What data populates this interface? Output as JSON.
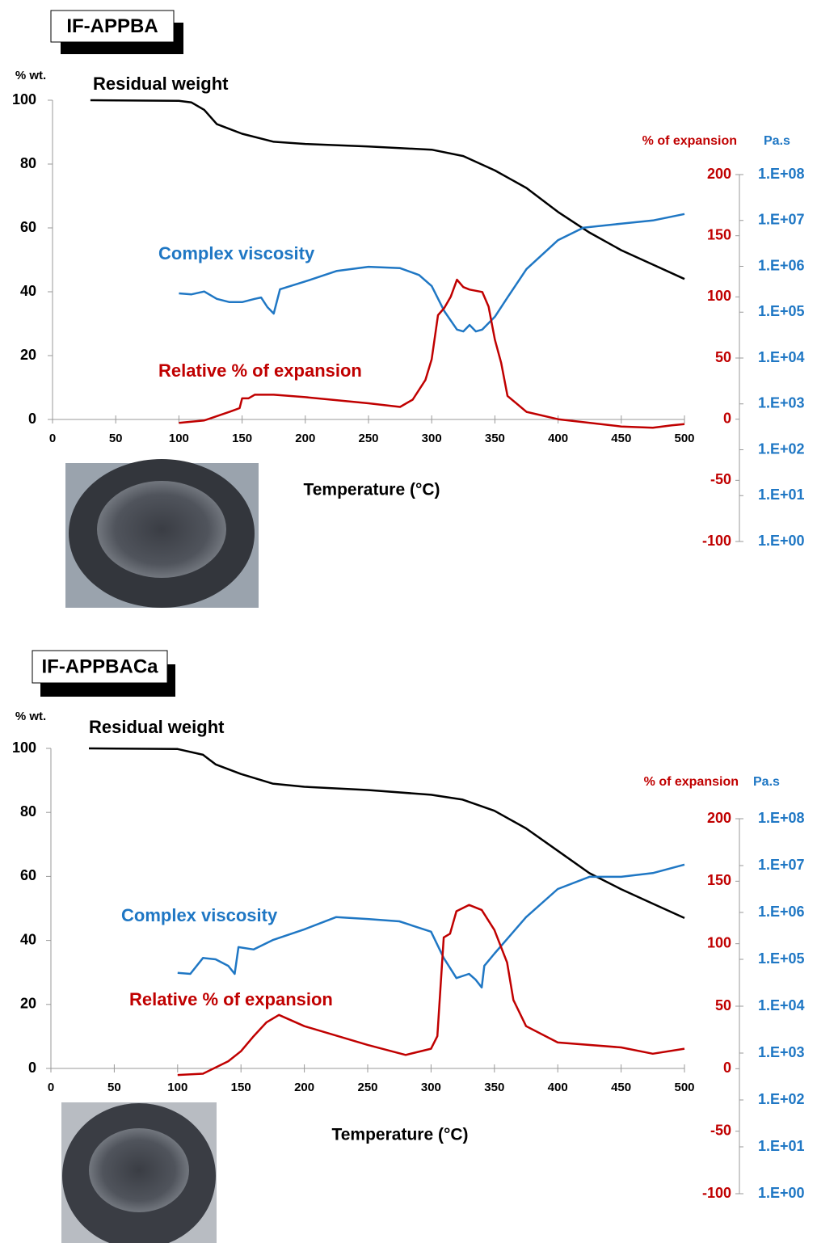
{
  "chart_data": [
    {
      "type": "line",
      "title": "IF-APPBA",
      "x_label": "Temperature (°C)",
      "y_label": "% wt.",
      "y2_label": "% of expansion",
      "y3_label": "Pa.s",
      "xlim": [
        0,
        500
      ],
      "xticks": [
        0,
        50,
        100,
        150,
        200,
        250,
        300,
        350,
        400,
        450,
        500
      ],
      "ylim": [
        0,
        100
      ],
      "yticks": [
        0,
        20,
        40,
        60,
        80,
        100
      ],
      "y2lim": [
        -100,
        200
      ],
      "y2ticks": [
        -100,
        -50,
        0,
        50,
        100,
        150,
        200
      ],
      "y3lim": [
        1,
        100000000
      ],
      "y3log": true,
      "y3ticks": [
        {
          "value": 1,
          "label": "1.E+00"
        },
        {
          "value": 10,
          "label": "1.E+01"
        },
        {
          "value": 100,
          "label": "1.E+02"
        },
        {
          "value": 1000,
          "label": "1.E+03"
        },
        {
          "value": 10000,
          "label": "1.E+04"
        },
        {
          "value": 100000,
          "label": "1.E+05"
        },
        {
          "value": 1000000,
          "label": "1.E+06"
        },
        {
          "value": 10000000,
          "label": "1.E+07"
        },
        {
          "value": 100000000,
          "label": "1.E+08"
        }
      ],
      "series": [
        {
          "name": "Residual weight",
          "color": "#000000",
          "axis": "y",
          "x": [
            30,
            100,
            110,
            120,
            130,
            140,
            150,
            175,
            200,
            250,
            300,
            325,
            350,
            375,
            400,
            425,
            450,
            475,
            500
          ],
          "values": [
            100,
            99.8,
            99.3,
            97,
            92.5,
            91,
            89.5,
            87,
            86.3,
            85.5,
            84.5,
            82.5,
            78,
            72.5,
            65,
            58.5,
            53,
            48.5,
            44
          ]
        },
        {
          "name": "Complex viscosity",
          "color": "#1f77c4",
          "axis": "y3",
          "x": [
            100,
            110,
            120,
            130,
            140,
            150,
            160,
            165,
            170,
            175,
            180,
            200,
            225,
            250,
            275,
            290,
            300,
            310,
            320,
            325,
            330,
            335,
            340,
            350,
            360,
            375,
            400,
            420,
            450,
            475,
            500
          ],
          "values": [
            257000,
            245000,
            282000,
            195000,
            166000,
            166000,
            195000,
            209000,
            129000,
            93000,
            316000,
            468000,
            794000,
            977000,
            912000,
            646000,
            372000,
            105000,
            41700,
            38000,
            52500,
            38000,
            41700,
            79400,
            209000,
            871000,
            3720000,
            6920000,
            8510000,
            10000000,
            13800000
          ]
        },
        {
          "name": "Relative % of expansion",
          "color": "#c00000",
          "axis": "y2",
          "x": [
            100,
            120,
            140,
            148,
            150,
            155,
            160,
            175,
            200,
            250,
            275,
            285,
            295,
            300,
            305,
            310,
            315,
            320,
            325,
            330,
            340,
            345,
            350,
            355,
            360,
            375,
            400,
            450,
            475,
            490,
            500
          ],
          "values": [
            -3,
            -1,
            6,
            9,
            17,
            17,
            20,
            20,
            18,
            13,
            10,
            16,
            32,
            49,
            85,
            91,
            100,
            114,
            108,
            106,
            104,
            92,
            65,
            46,
            19,
            6,
            0,
            -6,
            -7,
            -5,
            -4
          ]
        }
      ]
    },
    {
      "type": "line",
      "title": "IF-APPBACa",
      "x_label": "Temperature (°C)",
      "y_label": "% wt.",
      "y2_label": "% of expansion",
      "y3_label": "Pa.s",
      "xlim": [
        0,
        500
      ],
      "xticks": [
        0,
        50,
        100,
        150,
        200,
        250,
        300,
        350,
        400,
        450,
        500
      ],
      "ylim": [
        0,
        100
      ],
      "yticks": [
        0,
        20,
        40,
        60,
        80,
        100
      ],
      "y2lim": [
        -100,
        200
      ],
      "y2ticks": [
        -100,
        -50,
        0,
        50,
        100,
        150,
        200
      ],
      "y3lim": [
        1,
        100000000
      ],
      "y3log": true,
      "y3ticks": [
        {
          "value": 1,
          "label": "1.E+00"
        },
        {
          "value": 10,
          "label": "1.E+01"
        },
        {
          "value": 100,
          "label": "1.E+02"
        },
        {
          "value": 1000,
          "label": "1.E+03"
        },
        {
          "value": 10000,
          "label": "1.E+04"
        },
        {
          "value": 100000,
          "label": "1.E+05"
        },
        {
          "value": 1000000,
          "label": "1.E+06"
        },
        {
          "value": 10000000,
          "label": "1.E+07"
        },
        {
          "value": 100000000,
          "label": "1.E+08"
        }
      ],
      "series": [
        {
          "name": "Residual weight",
          "color": "#000000",
          "axis": "y",
          "x": [
            30,
            100,
            120,
            130,
            150,
            175,
            200,
            250,
            300,
            325,
            350,
            375,
            400,
            425,
            450,
            475,
            500
          ],
          "values": [
            100,
            99.8,
            98,
            95,
            92,
            89,
            88,
            87,
            85.5,
            84,
            80.5,
            75,
            68,
            61,
            56,
            51.5,
            47
          ]
        },
        {
          "name": "Complex viscosity",
          "color": "#1f77c4",
          "axis": "y3",
          "x": [
            100,
            110,
            120,
            130,
            140,
            145,
            148,
            160,
            175,
            200,
            225,
            250,
            275,
            300,
            310,
            320,
            330,
            335,
            340,
            342,
            350,
            375,
            400,
            425,
            450,
            475,
            500
          ],
          "values": [
            51300,
            49000,
            107000,
            100000,
            72400,
            49000,
            182000,
            162000,
            257000,
            437000,
            794000,
            724000,
            646000,
            389000,
            107000,
            39800,
            49000,
            37200,
            25100,
            72400,
            132000,
            794000,
            3160000,
            5750000,
            5750000,
            6920000,
            10500000
          ]
        },
        {
          "name": "Relative % of expansion",
          "color": "#c00000",
          "axis": "y2",
          "x": [
            100,
            120,
            140,
            150,
            160,
            170,
            180,
            200,
            250,
            280,
            300,
            305,
            310,
            315,
            320,
            330,
            340,
            350,
            360,
            365,
            375,
            400,
            450,
            475,
            500
          ],
          "values": [
            -5,
            -4,
            6,
            14,
            26,
            37,
            43,
            34,
            19,
            11,
            16,
            26,
            105,
            108,
            126,
            131,
            127,
            111,
            85,
            55,
            34,
            21,
            17,
            12,
            16
          ]
        }
      ]
    }
  ]
}
